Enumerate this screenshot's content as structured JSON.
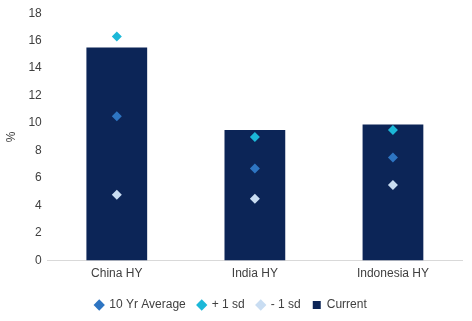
{
  "chart_data": {
    "type": "bar",
    "categories": [
      "China HY",
      "India HY",
      "Indonesia HY"
    ],
    "series": [
      {
        "name": "Current",
        "type": "bar",
        "color": "#0c2557",
        "values": [
          15.5,
          9.5,
          9.9
        ]
      },
      {
        "name": "10 Yr Average",
        "type": "scatter",
        "marker": "diamond",
        "color": "#2e75c2",
        "values": [
          10.5,
          6.7,
          7.5
        ]
      },
      {
        "name": "+ 1 sd",
        "type": "scatter",
        "marker": "diamond",
        "color": "#1cb8d8",
        "values": [
          16.3,
          9.0,
          9.5
        ]
      },
      {
        "name": "- 1 sd",
        "type": "scatter",
        "marker": "diamond",
        "color": "#c9ddf2",
        "values": [
          4.8,
          4.5,
          5.5
        ]
      }
    ],
    "ylabel": "%",
    "ylim": [
      0,
      18
    ],
    "yticks": [
      0,
      2,
      4,
      6,
      8,
      10,
      12,
      14,
      16,
      18
    ],
    "grid": false,
    "legend": "bottom"
  }
}
